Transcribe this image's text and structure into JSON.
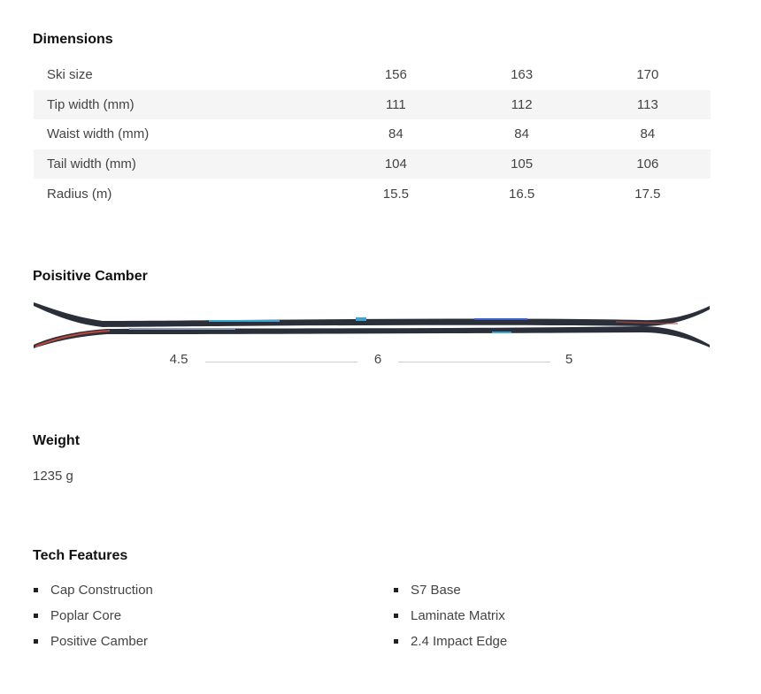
{
  "dimensions": {
    "title": "Dimensions",
    "rows": [
      {
        "label": "Ski size",
        "values": [
          "156",
          "163",
          "170"
        ]
      },
      {
        "label": "Tip width (mm)",
        "values": [
          "111",
          "112",
          "113"
        ]
      },
      {
        "label": "Waist width (mm)",
        "values": [
          "84",
          "84",
          "84"
        ]
      },
      {
        "label": "Tail width (mm)",
        "values": [
          "104",
          "105",
          "106"
        ]
      },
      {
        "label": "Radius (m)",
        "values": [
          "15.5",
          "16.5",
          "17.5"
        ]
      }
    ]
  },
  "camber": {
    "title": "Poisitive Camber",
    "values": [
      "4.5",
      "6",
      "5"
    ],
    "colors": {
      "topsheet": "#2b2f3a",
      "accent": "#3aa6d8",
      "tail_accent": "#c0463a"
    }
  },
  "weight": {
    "title": "Weight",
    "value": "1235 g"
  },
  "tech": {
    "title": "Tech Features",
    "left": [
      "Cap Construction",
      "Poplar Core",
      "Positive Camber"
    ],
    "right": [
      "S7 Base",
      "Laminate Matrix",
      "2.4 Impact Edge"
    ]
  }
}
